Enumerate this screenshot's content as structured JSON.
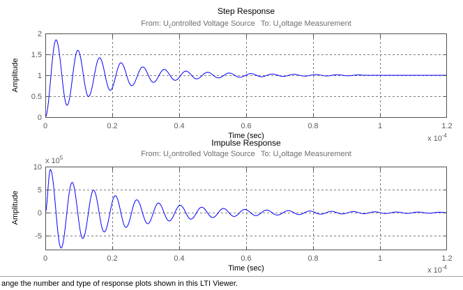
{
  "viewer": {
    "status_text": "ange the number and type of response plots shown in this LTI Viewer."
  },
  "chart_data": [
    {
      "type": "line",
      "title": "Step Response",
      "subtitle": {
        "from_label": "From: U",
        "from_sub": "c",
        "from_rest": "ontrolled Voltage Source",
        "to_label": "To: U",
        "to_sub": "v",
        "to_rest": "oltage Measurement"
      },
      "xlabel": "Time (sec)",
      "ylabel": "Amplitude",
      "x_multiplier": {
        "base": "x 10",
        "exponent": "-4"
      },
      "xlim": [
        0,
        1.2
      ],
      "ylim": [
        0,
        2
      ],
      "xticks": [
        0,
        0.2,
        0.4,
        0.6,
        0.8,
        1,
        1.2
      ],
      "xtick_labels": [
        "0",
        "0.2",
        "0.4",
        "0.6",
        "0.8",
        "1",
        "1.2"
      ],
      "yticks": [
        0,
        0.5,
        1,
        1.5,
        2
      ],
      "ytick_labels": [
        "0",
        "0.5",
        "1",
        "1.5",
        "2"
      ],
      "grid": true,
      "series": [
        {
          "color": "#0000ff",
          "points": [
            [
              0,
              0
            ],
            [
              0.032,
              1.85
            ],
            [
              0.065,
              0.28
            ],
            [
              0.097,
              1.6
            ],
            [
              0.129,
              0.49
            ],
            [
              0.162,
              1.42
            ],
            [
              0.194,
              0.64
            ],
            [
              0.226,
              1.3
            ],
            [
              0.258,
              0.75
            ],
            [
              0.291,
              1.2
            ],
            [
              0.323,
              0.83
            ],
            [
              0.355,
              1.14
            ],
            [
              0.388,
              0.88
            ],
            [
              0.42,
              1.1
            ],
            [
              0.452,
              0.914
            ],
            [
              0.485,
              1.073
            ],
            [
              0.517,
              0.937
            ],
            [
              0.549,
              1.054
            ],
            [
              0.581,
              0.953
            ],
            [
              0.614,
              1.04
            ],
            [
              0.646,
              0.965
            ],
            [
              0.678,
              1.03
            ],
            [
              0.711,
              0.974
            ],
            [
              0.743,
              1.023
            ],
            [
              0.775,
              0.98
            ],
            [
              0.808,
              1.018
            ],
            [
              0.84,
              0.984
            ],
            [
              0.872,
              1.014
            ],
            [
              0.904,
              0.988
            ],
            [
              0.937,
              1.011
            ],
            [
              0.953,
              1
            ],
            [
              1.2,
              1
            ]
          ]
        }
      ]
    },
    {
      "type": "line",
      "title": "Impulse Response",
      "subtitle": {
        "from_label": "From: U",
        "from_sub": "c",
        "from_rest": "ontrolled Voltage Source",
        "to_label": "To: U",
        "to_sub": "v",
        "to_rest": "oltage Measurement"
      },
      "xlabel": "Time (sec)",
      "ylabel": "Amplitude",
      "x_multiplier": {
        "base": "x 10",
        "exponent": "-4"
      },
      "y_multiplier": {
        "base": "x 10",
        "exponent": "5"
      },
      "xlim": [
        0,
        1.2
      ],
      "ylim": [
        -8,
        10
      ],
      "xticks": [
        0,
        0.2,
        0.4,
        0.6,
        0.8,
        1,
        1.2
      ],
      "xtick_labels": [
        "0",
        "0.2",
        "0.4",
        "0.6",
        "0.8",
        "1",
        "1.2"
      ],
      "yticks": [
        -5,
        0,
        5,
        10
      ],
      "ytick_labels": [
        "-5",
        "0",
        "5",
        "10"
      ],
      "grid": true,
      "series": [
        {
          "color": "#0000ff",
          "points": [
            [
              0,
              0
            ],
            [
              0.015,
              9.4
            ],
            [
              0.047,
              -7.7
            ],
            [
              0.08,
              6.6
            ],
            [
              0.112,
              -5.6
            ],
            [
              0.144,
              4.9
            ],
            [
              0.176,
              -4.2
            ],
            [
              0.209,
              3.7
            ],
            [
              0.241,
              -3.2
            ],
            [
              0.273,
              2.8
            ],
            [
              0.306,
              -2.4
            ],
            [
              0.338,
              2.1
            ],
            [
              0.37,
              -1.8
            ],
            [
              0.403,
              1.6
            ],
            [
              0.435,
              -1.4
            ],
            [
              0.467,
              1.2
            ],
            [
              0.5,
              -1.05
            ],
            [
              0.532,
              0.92
            ],
            [
              0.564,
              -0.81
            ],
            [
              0.596,
              0.72
            ],
            [
              0.629,
              -0.64
            ],
            [
              0.661,
              0.57
            ],
            [
              0.693,
              -0.51
            ],
            [
              0.726,
              0.46
            ],
            [
              0.758,
              -0.41
            ],
            [
              0.79,
              0.37
            ],
            [
              0.823,
              -0.33
            ],
            [
              0.855,
              0.3
            ],
            [
              0.887,
              -0.27
            ],
            [
              0.92,
              0.25
            ],
            [
              0.952,
              -0.22
            ],
            [
              0.984,
              0.2
            ],
            [
              1.017,
              -0.18
            ],
            [
              1.049,
              0.16
            ],
            [
              1.081,
              -0.15
            ],
            [
              1.114,
              0.14
            ],
            [
              1.146,
              -0.12
            ],
            [
              1.178,
              0.11
            ],
            [
              1.2,
              0
            ]
          ]
        }
      ]
    }
  ]
}
